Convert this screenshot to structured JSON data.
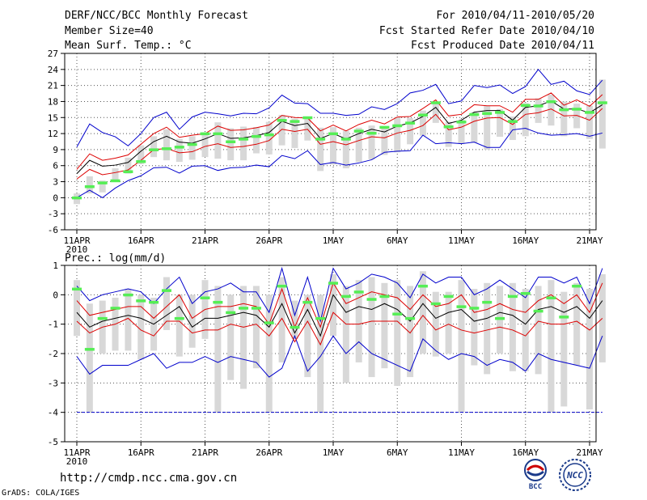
{
  "header": {
    "title": "DERF/NCC/BCC Monthly Forecast",
    "member_size": "Member Size=40",
    "variable": "Mean Surf. Temp.: °C",
    "period": "For 2010/04/11-2010/05/20",
    "start_date": "Fcst Started Refer Date 2010/04/10",
    "produced_date": "Fcst Produced Date 2010/04/11"
  },
  "footer": {
    "url": "http://cmdp.ncc.cma.gov.cn",
    "credit": "GrADS: COLA/IGES",
    "logo1_text": "BCC",
    "logo2_text": "NCC"
  },
  "colors": {
    "box": "#d8d8d8",
    "obs": "#55ee55",
    "envelope": "#0000cc",
    "quantile": "#dd0000",
    "median": "#000000",
    "grid": "#555555"
  },
  "chart_data": [
    {
      "type": "line",
      "title": "Mean Surf. Temp.: °C",
      "xlabel": "",
      "ylabel": "°C",
      "ylim": [
        -6,
        27
      ],
      "yticks": [
        -6,
        -3,
        0,
        3,
        6,
        9,
        12,
        15,
        18,
        21,
        24,
        27
      ],
      "xlim": [
        0,
        40
      ],
      "xticks": [
        {
          "pos": 0,
          "label": "11APR",
          "sub": "2010"
        },
        {
          "pos": 5,
          "label": "16APR"
        },
        {
          "pos": 10,
          "label": "21APR"
        },
        {
          "pos": 15,
          "label": "26APR"
        },
        {
          "pos": 20,
          "label": "1MAY"
        },
        {
          "pos": 25,
          "label": "6MAY"
        },
        {
          "pos": 30,
          "label": "11MAY"
        },
        {
          "pos": 35,
          "label": "16MAY"
        },
        {
          "pos": 40,
          "label": "21MAY"
        }
      ],
      "series": [
        {
          "name": "max",
          "values": [
            9.5,
            13.8,
            12.2,
            11.4,
            9.7,
            12.0,
            15.0,
            16.0,
            12.8,
            15.1,
            16.0,
            15.7,
            15.3,
            15.8,
            15.7,
            16.8,
            19.2,
            17.7,
            17.6,
            15.8,
            15.8,
            15.4,
            15.6,
            17.0,
            16.5,
            17.6,
            19.6,
            20.1,
            21.2,
            17.6,
            18.1,
            21.0,
            20.6,
            21.1,
            19.5,
            20.8,
            24.0,
            21.2,
            21.8,
            20.0,
            19.3,
            22.0
          ]
        },
        {
          "name": "upper",
          "values": [
            5.3,
            8.2,
            7.0,
            7.4,
            8.0,
            10.0,
            12.0,
            13.2,
            11.3,
            11.7,
            12.0,
            13.4,
            12.6,
            12.7,
            13.1,
            13.6,
            15.4,
            15.0,
            14.9,
            12.5,
            13.6,
            12.5,
            13.7,
            14.5,
            13.8,
            15.1,
            15.2,
            16.7,
            18.3,
            15.3,
            15.6,
            17.4,
            17.2,
            17.2,
            16.0,
            18.4,
            18.4,
            19.6,
            17.3,
            18.3,
            17.1,
            19.3
          ]
        },
        {
          "name": "median",
          "values": [
            4.5,
            7.0,
            5.9,
            6.1,
            6.6,
            8.7,
            10.5,
            11.5,
            10.4,
            10.2,
            11.0,
            12.0,
            11.1,
            11.2,
            11.6,
            12.2,
            14.3,
            13.5,
            13.9,
            11.1,
            12.0,
            11.0,
            12.0,
            12.8,
            12.3,
            13.4,
            14.0,
            15.2,
            16.9,
            13.9,
            14.5,
            16.0,
            16.3,
            16.3,
            14.5,
            16.9,
            17.2,
            18.1,
            16.6,
            16.6,
            15.9,
            17.4
          ]
        },
        {
          "name": "lower",
          "values": [
            3.5,
            5.3,
            4.3,
            4.7,
            5.2,
            7.0,
            9.0,
            9.2,
            8.4,
            8.6,
            9.6,
            10.1,
            9.4,
            9.6,
            10.0,
            10.7,
            12.8,
            12.4,
            12.8,
            10.0,
            10.5,
            9.9,
            10.7,
            11.4,
            11.2,
            12.1,
            12.6,
            13.5,
            15.6,
            12.7,
            13.2,
            14.3,
            14.9,
            15.0,
            13.7,
            15.6,
            15.9,
            16.6,
            15.3,
            15.4,
            14.5,
            16.7
          ]
        },
        {
          "name": "min",
          "values": [
            0.0,
            1.4,
            0.0,
            1.8,
            3.2,
            4.1,
            5.6,
            5.7,
            4.6,
            5.9,
            6.0,
            5.1,
            5.6,
            5.7,
            6.1,
            5.8,
            7.9,
            7.3,
            8.8,
            6.2,
            6.6,
            6.1,
            6.5,
            7.1,
            8.5,
            8.7,
            8.8,
            11.7,
            10.1,
            10.3,
            10.1,
            10.4,
            9.4,
            9.4,
            12.7,
            13.0,
            12.1,
            11.7,
            11.8,
            12.0,
            11.5,
            12.1
          ]
        },
        {
          "name": "box_top",
          "values": [
            0.8,
            4.0,
            3.2,
            5.5,
            7.5,
            9.8,
            11.5,
            12.8,
            11.0,
            11.5,
            12.2,
            14.1,
            13.0,
            13.3,
            13.2,
            14.2,
            15.5,
            14.8,
            15.1,
            13.1,
            13.2,
            12.5,
            13.1,
            13.5,
            13.3,
            15.1,
            14.9,
            16.3,
            17.7,
            14.2,
            14.6,
            16.0,
            17.2,
            16.6,
            15.2,
            17.7,
            18.6,
            19.3,
            18.0,
            17.6,
            17.2,
            22.1
          ]
        },
        {
          "name": "box_bottom",
          "values": [
            -1.2,
            0.8,
            1.0,
            3.0,
            4.5,
            6.3,
            7.6,
            7.0,
            6.7,
            7.1,
            7.6,
            7.3,
            7.0,
            7.0,
            8.3,
            8.1,
            9.8,
            9.3,
            10.7,
            5.0,
            6.2,
            5.5,
            6.7,
            7.2,
            8.0,
            8.5,
            10.0,
            11.6,
            14.0,
            9.5,
            10.1,
            10.3,
            9.0,
            11.4,
            10.8,
            11.5,
            14.0,
            13.5,
            11.5,
            13.0,
            11.0,
            9.2
          ]
        },
        {
          "name": "observed",
          "values": [
            0.0,
            2.1,
            2.8,
            3.2,
            4.9,
            6.8,
            9.0,
            9.2,
            9.5,
            10.0,
            12.0,
            12.0,
            10.5,
            11.0,
            11.5,
            11.8,
            14.5,
            14.3,
            15.0,
            11.0,
            12.0,
            11.0,
            12.5,
            12.1,
            13.2,
            13.5,
            14.0,
            15.5,
            17.8,
            13.3,
            14.2,
            15.6,
            15.8,
            16.0,
            14.3,
            17.3,
            17.2,
            18.0,
            16.5,
            16.6,
            16.0,
            17.8
          ]
        }
      ]
    },
    {
      "type": "line",
      "title": "Prec.: log(mm/d)",
      "xlabel": "",
      "ylabel": "log(mm/d)",
      "ylim": [
        -5,
        1
      ],
      "yticks": [
        -5,
        -4,
        -3,
        -2,
        -1,
        0,
        1
      ],
      "xlim": [
        0,
        40
      ],
      "xticks": [
        {
          "pos": 0,
          "label": "11APR",
          "sub": "2010"
        },
        {
          "pos": 5,
          "label": "16APR"
        },
        {
          "pos": 10,
          "label": "21APR"
        },
        {
          "pos": 15,
          "label": "26APR"
        },
        {
          "pos": 20,
          "label": "1MAY"
        },
        {
          "pos": 25,
          "label": "6MAY"
        },
        {
          "pos": 30,
          "label": "11MAY"
        },
        {
          "pos": 35,
          "label": "16MAY"
        },
        {
          "pos": 40,
          "label": "21MAY"
        }
      ],
      "series": [
        {
          "name": "max",
          "values": [
            0.3,
            -0.2,
            0.0,
            0.1,
            0.2,
            0.1,
            -0.3,
            0.2,
            0.6,
            -0.3,
            0.1,
            0.2,
            0.4,
            0.1,
            0.1,
            -0.6,
            0.9,
            -0.7,
            0.6,
            -0.9,
            0.9,
            0.2,
            0.4,
            0.7,
            0.6,
            0.4,
            -0.1,
            0.7,
            0.4,
            0.6,
            0.6,
            0.0,
            0.2,
            0.5,
            0.2,
            -0.1,
            0.6,
            0.6,
            0.4,
            0.6,
            -0.3,
            0.9
          ]
        },
        {
          "name": "upper",
          "values": [
            -0.2,
            -0.7,
            -0.6,
            -0.5,
            -0.4,
            -0.4,
            -0.8,
            -0.4,
            0.0,
            -0.8,
            -0.5,
            -0.4,
            -0.4,
            -0.3,
            -0.4,
            -1.0,
            0.2,
            -1.1,
            -0.1,
            -1.1,
            0.4,
            -0.3,
            -0.1,
            0.1,
            0.0,
            -0.1,
            -0.5,
            0.0,
            -0.4,
            -0.3,
            0.0,
            -0.6,
            -0.5,
            -0.3,
            -0.5,
            -0.6,
            -0.2,
            0.0,
            -0.3,
            0.0,
            -0.6,
            0.4
          ]
        },
        {
          "name": "median",
          "values": [
            -0.6,
            -1.1,
            -0.9,
            -0.8,
            -0.7,
            -0.8,
            -1.0,
            -0.7,
            -0.4,
            -1.1,
            -0.8,
            -0.8,
            -0.7,
            -0.6,
            -0.7,
            -1.1,
            -0.3,
            -1.3,
            -0.5,
            -1.4,
            0.0,
            -0.6,
            -0.4,
            -0.5,
            -0.3,
            -0.5,
            -0.9,
            -0.3,
            -0.8,
            -0.6,
            -0.5,
            -0.9,
            -0.8,
            -0.6,
            -0.7,
            -1.0,
            -0.5,
            -0.4,
            -0.6,
            -0.4,
            -0.8,
            -0.2
          ]
        },
        {
          "name": "lower",
          "values": [
            -0.9,
            -1.3,
            -1.1,
            -1.0,
            -0.8,
            -1.2,
            -1.4,
            -0.9,
            -0.9,
            -1.3,
            -1.2,
            -1.2,
            -1.0,
            -1.1,
            -1.0,
            -1.4,
            -0.8,
            -1.6,
            -0.9,
            -1.7,
            -0.6,
            -1.0,
            -1.0,
            -0.9,
            -0.9,
            -0.9,
            -1.3,
            -0.7,
            -1.2,
            -1.0,
            -1.2,
            -1.3,
            -1.2,
            -1.1,
            -1.2,
            -1.4,
            -0.9,
            -1.0,
            -1.0,
            -0.9,
            -1.2,
            -0.8
          ]
        },
        {
          "name": "min",
          "values": [
            -2.1,
            -2.7,
            -2.4,
            -2.4,
            -2.4,
            -2.2,
            -2.0,
            -2.5,
            -2.3,
            -2.3,
            -2.1,
            -2.3,
            -2.1,
            -2.2,
            -2.3,
            -2.8,
            -2.5,
            -1.4,
            -2.6,
            -2.1,
            -1.4,
            -2.0,
            -1.6,
            -2.0,
            -2.2,
            -2.4,
            -2.6,
            -1.5,
            -1.9,
            -2.2,
            -2.0,
            -2.1,
            -2.4,
            -2.2,
            -2.3,
            -2.6,
            -2.0,
            -2.2,
            -2.3,
            -2.4,
            -2.5,
            -1.4
          ]
        },
        {
          "name": "box_top",
          "values": [
            0.5,
            -0.3,
            -0.2,
            -0.1,
            0.2,
            0.0,
            -0.1,
            0.6,
            0.0,
            0.0,
            0.5,
            0.3,
            0.0,
            0.3,
            0.3,
            0.0,
            0.6,
            -0.2,
            0.0,
            0.0,
            0.7,
            0.3,
            0.5,
            0.6,
            0.4,
            0.5,
            0.3,
            0.8,
            0.1,
            0.1,
            0.5,
            0.2,
            0.4,
            0.3,
            0.4,
            0.2,
            0.3,
            0.5,
            0.1,
            0.4,
            0.2,
            0.7
          ]
        },
        {
          "name": "box_bottom",
          "values": [
            -1.4,
            -4.0,
            -2.0,
            -1.9,
            -1.9,
            -2.2,
            -1.9,
            -1.2,
            -2.1,
            -1.8,
            -1.5,
            -4.0,
            -2.9,
            -3.2,
            -2.5,
            -4.0,
            -2.3,
            -1.5,
            -2.8,
            -4.0,
            -1.4,
            -3.0,
            -2.3,
            -2.8,
            -2.5,
            -3.1,
            -2.8,
            -2.0,
            -2.1,
            -2.0,
            -4.0,
            -2.4,
            -2.7,
            -2.0,
            -2.6,
            -2.6,
            -2.7,
            -4.0,
            -3.8,
            -2.4,
            -3.9,
            -2.3
          ]
        },
        {
          "name": "observed",
          "values": [
            0.2,
            -1.85,
            -0.8,
            -0.45,
            0.0,
            -0.2,
            -0.25,
            0.15,
            -0.8,
            null,
            -0.1,
            -0.25,
            -0.6,
            -0.45,
            -0.45,
            -0.95,
            0.3,
            -1.1,
            -0.25,
            -0.8,
            0.4,
            -0.05,
            0.1,
            -0.15,
            -0.05,
            -0.65,
            -0.8,
            0.3,
            -0.3,
            -0.05,
            -0.4,
            -0.45,
            -0.25,
            -0.8,
            -0.05,
            0.05,
            -0.55,
            -0.1,
            -0.75,
            0.3,
            null,
            null
          ]
        },
        {
          "name": "floor",
          "values": [
            -4,
            -4,
            -4,
            -4,
            -4,
            -4,
            -4,
            -4,
            -4,
            -4,
            -4,
            -4,
            -4,
            -4,
            -4,
            -4,
            -4,
            -4,
            -4,
            -4,
            -4,
            -4,
            -4,
            -4,
            -4,
            -4,
            -4,
            -4,
            -4,
            -4,
            -4,
            -4,
            -4,
            -4,
            -4,
            -4,
            -4,
            -4,
            -4,
            -4,
            -4,
            -4
          ]
        }
      ]
    }
  ]
}
